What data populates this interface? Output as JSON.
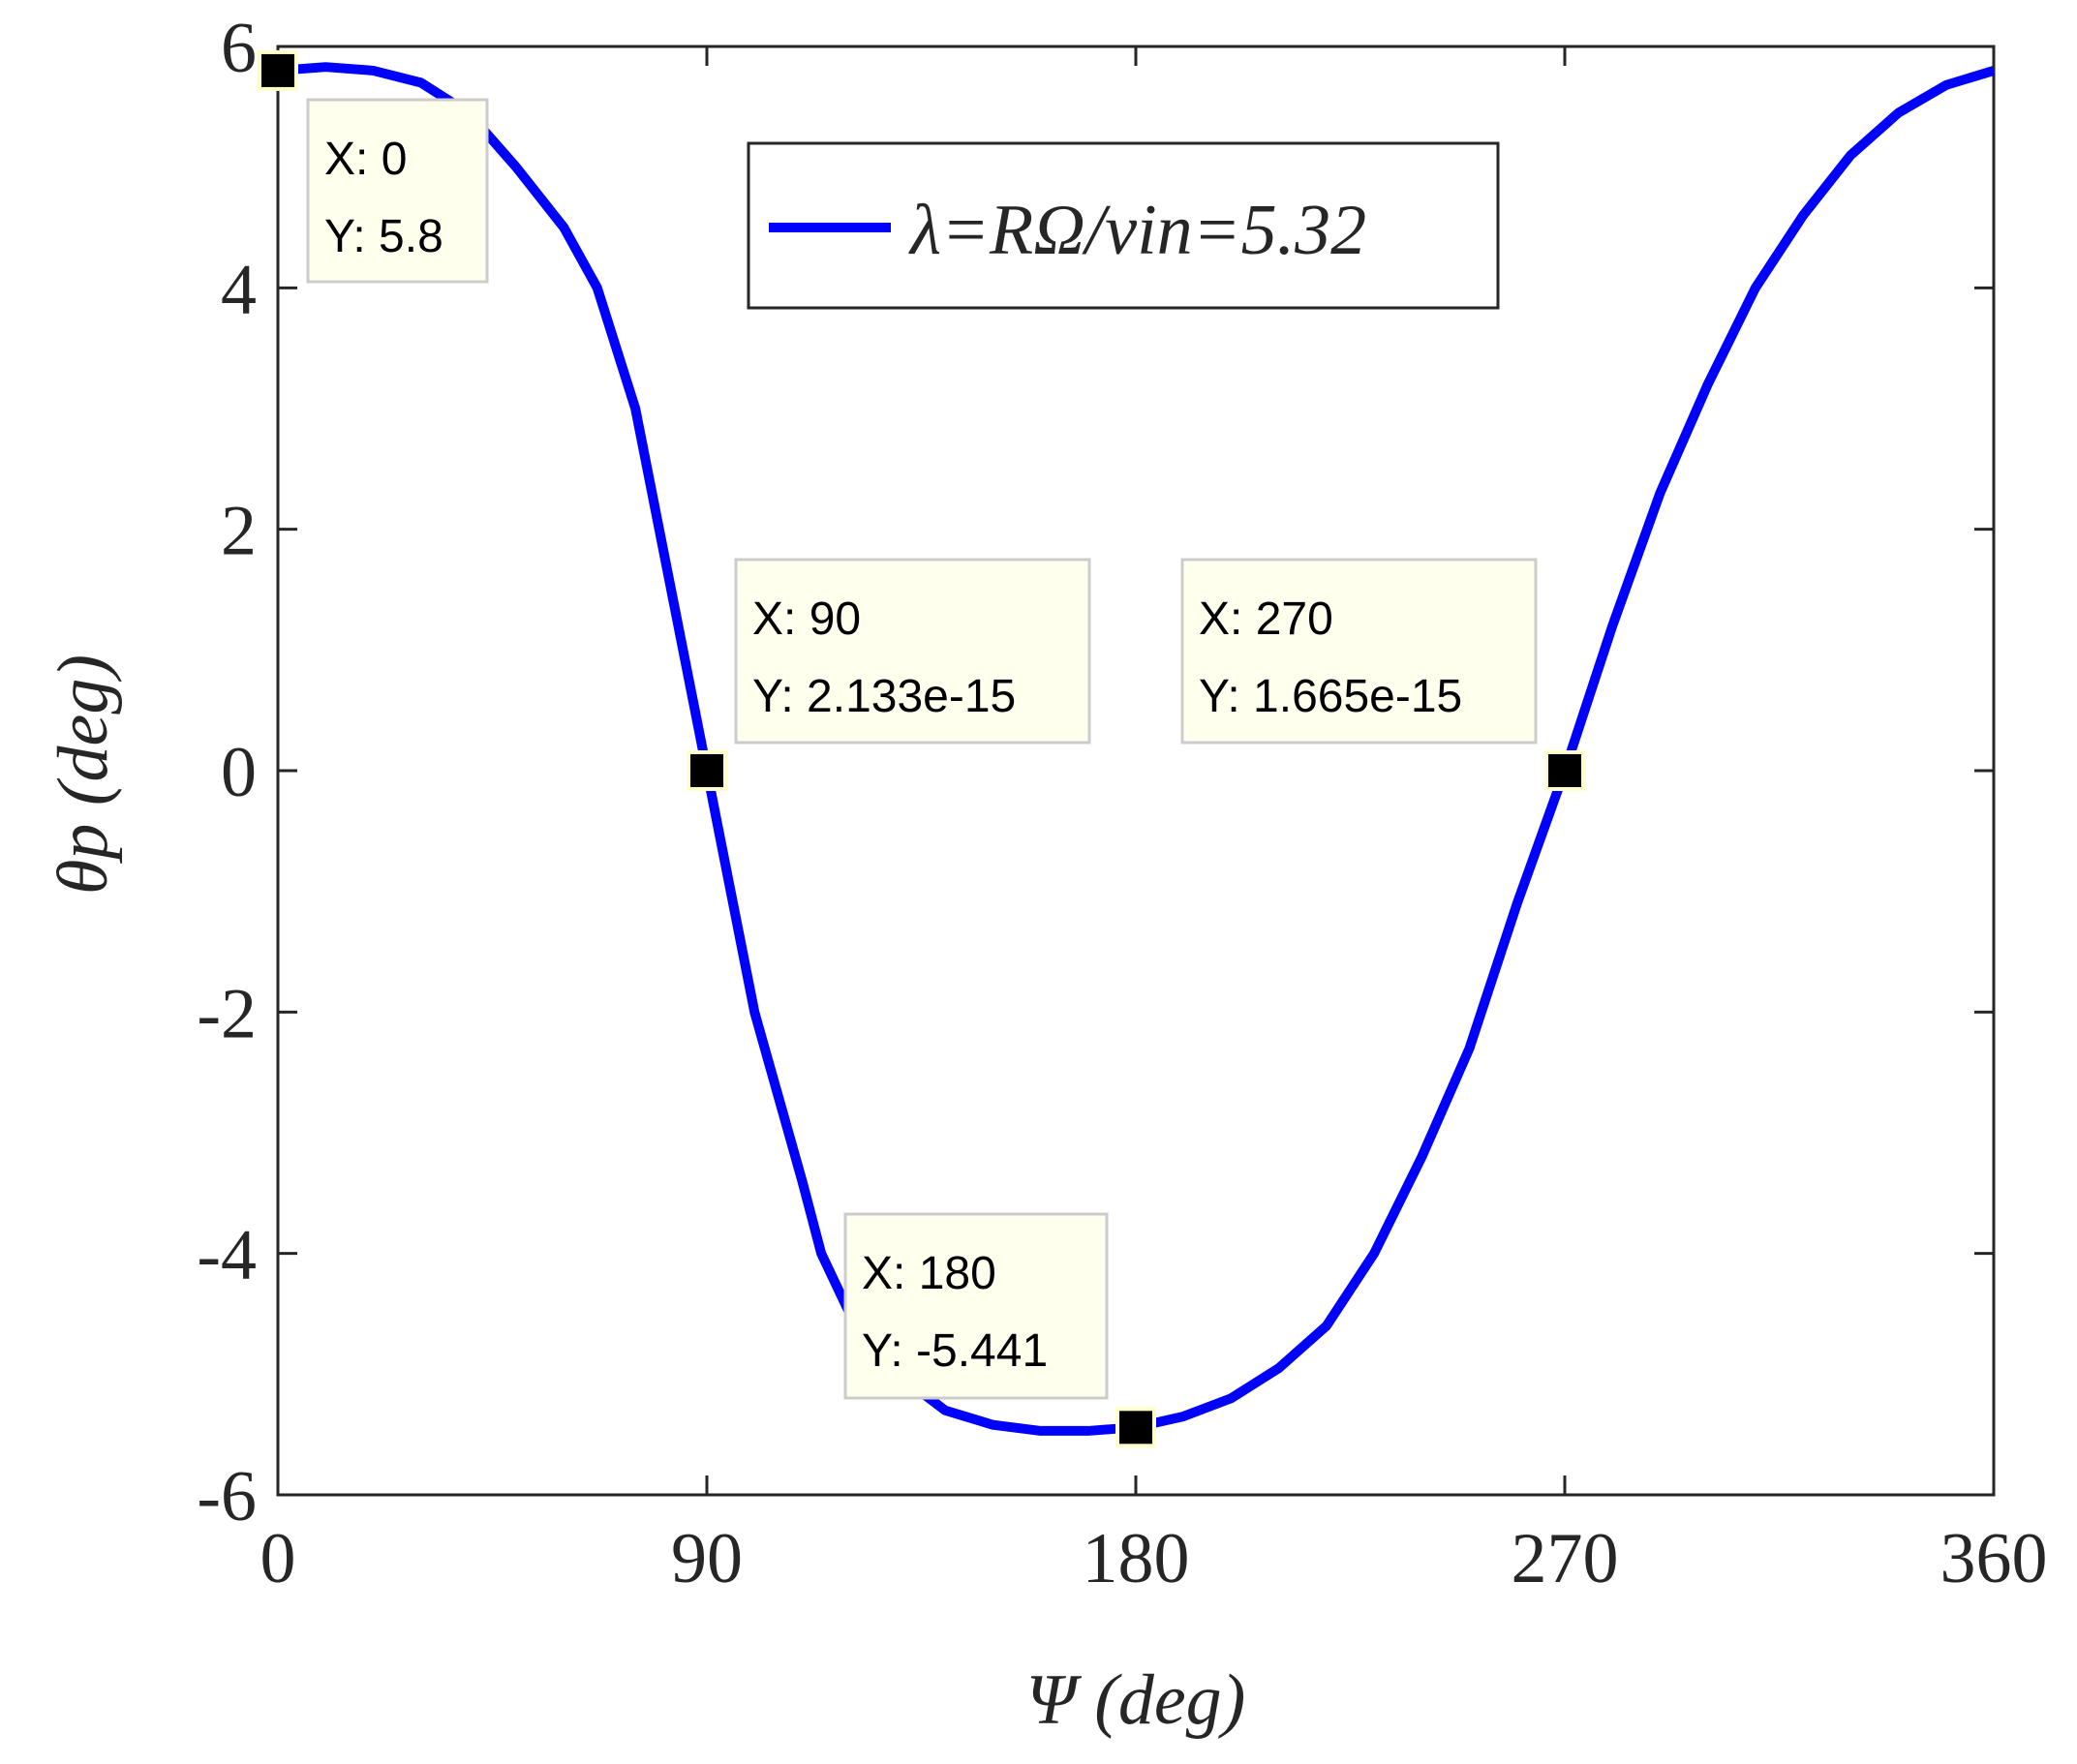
{
  "chart_data": {
    "type": "line",
    "xlabel": "Ψ  (deg)",
    "ylabel": "θp  (deg)",
    "x": [
      0,
      10,
      20,
      30,
      40,
      50,
      60,
      67,
      75,
      80,
      85,
      90,
      95,
      100,
      110,
      114,
      120,
      130,
      140,
      150,
      160,
      170,
      180,
      190,
      200,
      210,
      220,
      230,
      240,
      250,
      260,
      270,
      280,
      290,
      300,
      310,
      320,
      330,
      340,
      350,
      360
    ],
    "series": [
      {
        "name": "λ=RΩ/vin=5.32",
        "color": "#0000ff",
        "values": [
          5.8,
          5.83,
          5.8,
          5.7,
          5.45,
          5.0,
          4.5,
          4.0,
          3.0,
          2.0,
          1.0,
          0,
          -1.0,
          -2.0,
          -3.4,
          -4.0,
          -4.5,
          -5.0,
          -5.3,
          -5.42,
          -5.47,
          -5.47,
          -5.44,
          -5.35,
          -5.2,
          -4.95,
          -4.6,
          -4.0,
          -3.2,
          -2.3,
          -1.1,
          0,
          1.2,
          2.3,
          3.2,
          4.0,
          4.6,
          5.1,
          5.45,
          5.68,
          5.8
        ]
      }
    ],
    "xlim": [
      0,
      360
    ],
    "ylim": [
      -6,
      6
    ],
    "xticks": [
      0,
      90,
      180,
      270,
      360
    ],
    "yticks": [
      -6,
      -4,
      -2,
      0,
      2,
      4,
      6
    ],
    "datatips": [
      {
        "x": 0,
        "y": 5.8,
        "x_label": "X: 0",
        "y_label": "Y: 5.8"
      },
      {
        "x": 90,
        "y": 2.133e-15,
        "x_label": "X: 90",
        "y_label": "Y: 2.133e-15"
      },
      {
        "x": 180,
        "y": -5.441,
        "x_label": "X: 180",
        "y_label": "Y: -5.441"
      },
      {
        "x": 270,
        "y": 1.665e-15,
        "x_label": "X: 270",
        "y_label": "Y: 1.665e-15"
      }
    ]
  }
}
